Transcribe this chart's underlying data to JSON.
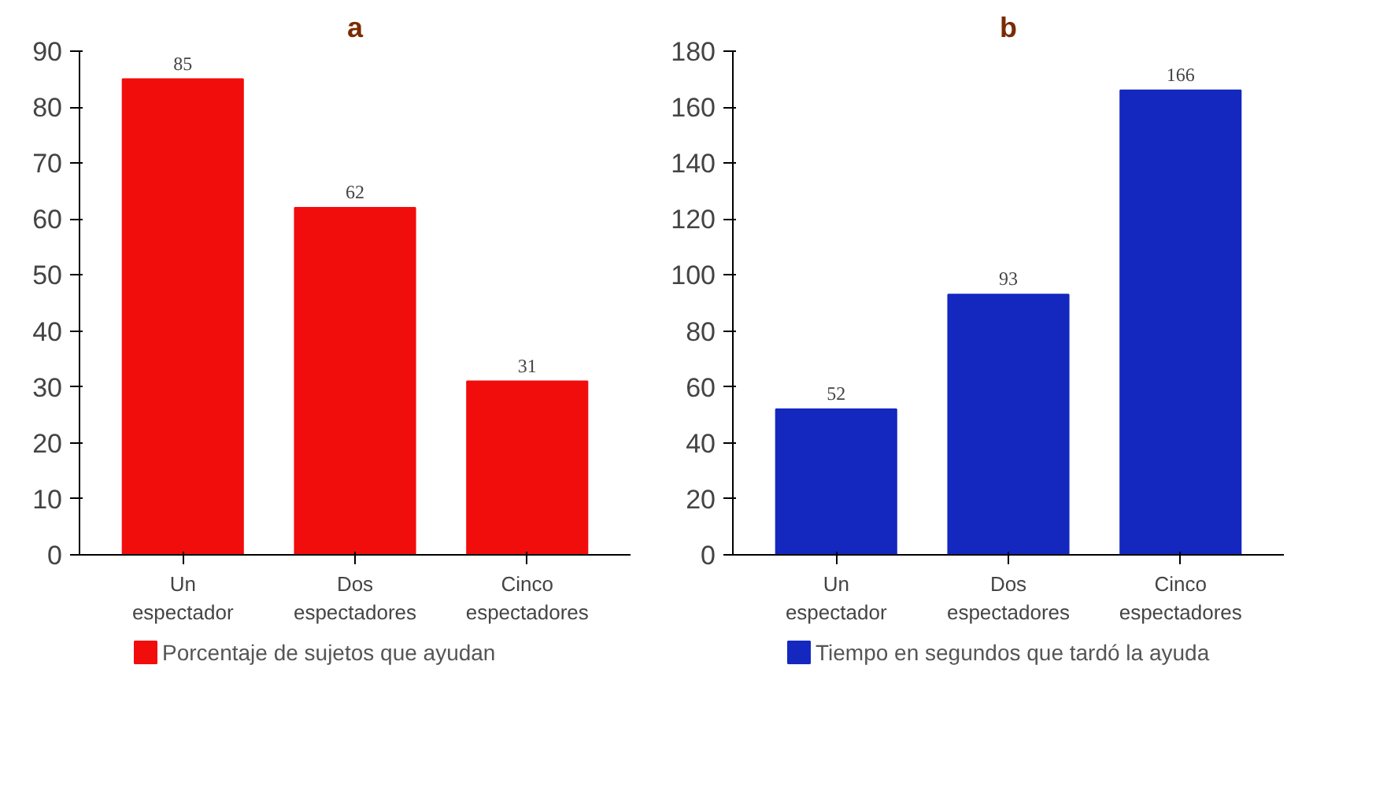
{
  "chart_data": [
    {
      "type": "bar",
      "title": "a",
      "categories": [
        "Un\nespectador",
        "Dos\nespectadores",
        "Cinco\nespectadores"
      ],
      "series": [
        {
          "name": "Porcentaje de sujetos que ayudan",
          "color": "#f20d0d",
          "values": [
            85,
            62,
            31
          ]
        }
      ],
      "ylim": [
        0,
        90
      ],
      "yticks": [
        0,
        10,
        20,
        30,
        40,
        50,
        60,
        70,
        80,
        90
      ],
      "data_labels": true,
      "grid": false,
      "legend": "bottom"
    },
    {
      "type": "bar",
      "title": "b",
      "categories": [
        "Un\nespectador",
        "Dos\nespectadores",
        "Cinco\nespectadores"
      ],
      "series": [
        {
          "name": "Tiempo en segundos que tardó la ayuda",
          "color": "#1428c0",
          "values": [
            52,
            93,
            166
          ]
        }
      ],
      "ylim": [
        0,
        180
      ],
      "yticks": [
        0,
        20,
        40,
        60,
        80,
        100,
        120,
        140,
        160,
        180
      ],
      "data_labels": true,
      "grid": false,
      "legend": "bottom"
    }
  ]
}
